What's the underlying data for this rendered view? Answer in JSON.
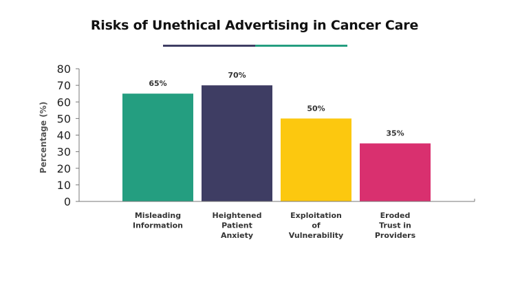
{
  "chart_data": {
    "type": "bar",
    "title": "Risks of Unethical Advertising in Cancer Care",
    "ylabel": "Percentage (%)",
    "xlabel": "",
    "ylim": [
      0,
      80
    ],
    "yticks": [
      "0",
      "10",
      "20",
      "30",
      "40",
      "50",
      "60",
      "70",
      "80"
    ],
    "yticks_values": [
      0,
      10,
      20,
      30,
      40,
      50,
      60,
      70,
      80
    ],
    "categories": [
      [
        "Misleading",
        "Information"
      ],
      [
        "Heightened",
        "Patient",
        "Anxiety"
      ],
      [
        "Exploitation",
        "of",
        "Vulnerability"
      ],
      [
        "Eroded",
        "Trust in",
        "Providers"
      ]
    ],
    "values": [
      65,
      70,
      50,
      35
    ],
    "data_labels": [
      "65%",
      "70%",
      "50%",
      "35%"
    ],
    "bar_colors": [
      "#249e80",
      "#3e3d63",
      "#fcc80f",
      "#d9306f"
    ],
    "title_underline_colors": [
      "#3e3d63",
      "#249e80"
    ],
    "grid": false,
    "legend": "none"
  }
}
